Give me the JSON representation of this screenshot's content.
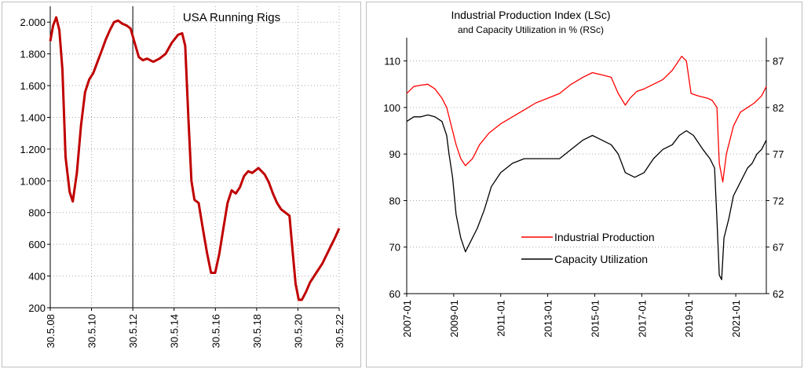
{
  "chart_data": [
    {
      "type": "line",
      "title": "USA Running Rigs",
      "x_ticks": [
        "30.5.08",
        "30.5.10",
        "30.5.12",
        "30.5.14",
        "30.5.16",
        "30.5.18",
        "30.5.20",
        "30.5.22"
      ],
      "y_ticks": [
        "200",
        "400",
        "600",
        "800",
        "1.000",
        "1.200",
        "1.400",
        "1.600",
        "1.800",
        "2.000"
      ],
      "ylim": [
        200,
        2100
      ],
      "xlim": [
        2008.41,
        2022.41
      ],
      "grid": true,
      "series": [
        {
          "color": "#c00000",
          "x": [
            2008.41,
            2008.55,
            2008.7,
            2008.85,
            2009.0,
            2009.15,
            2009.35,
            2009.5,
            2009.7,
            2009.9,
            2010.1,
            2010.3,
            2010.5,
            2010.7,
            2010.9,
            2011.1,
            2011.3,
            2011.5,
            2011.7,
            2011.9,
            2012.1,
            2012.3,
            2012.5,
            2012.7,
            2012.9,
            2013.1,
            2013.4,
            2013.7,
            2014.0,
            2014.3,
            2014.6,
            2014.8,
            2014.95,
            2015.1,
            2015.25,
            2015.4,
            2015.6,
            2015.8,
            2016.0,
            2016.2,
            2016.4,
            2016.6,
            2016.8,
            2017.0,
            2017.2,
            2017.4,
            2017.6,
            2017.8,
            2018.0,
            2018.2,
            2018.5,
            2018.8,
            2019.0,
            2019.2,
            2019.4,
            2019.6,
            2019.8,
            2020.0,
            2020.15,
            2020.3,
            2020.45,
            2020.6,
            2020.8,
            2021.0,
            2021.3,
            2021.6,
            2021.9,
            2022.2,
            2022.41
          ],
          "y": [
            1880,
            1980,
            2030,
            1950,
            1700,
            1150,
            930,
            870,
            1050,
            1350,
            1560,
            1640,
            1680,
            1750,
            1820,
            1890,
            1950,
            2000,
            2010,
            1990,
            1980,
            1960,
            1870,
            1780,
            1760,
            1770,
            1750,
            1770,
            1800,
            1870,
            1920,
            1930,
            1850,
            1400,
            1000,
            880,
            860,
            700,
            550,
            420,
            420,
            540,
            700,
            860,
            940,
            920,
            960,
            1030,
            1060,
            1050,
            1080,
            1040,
            990,
            920,
            860,
            820,
            800,
            780,
            560,
            350,
            250,
            250,
            300,
            360,
            420,
            480,
            560,
            640,
            700
          ]
        }
      ]
    },
    {
      "type": "line",
      "title": "Industrial Production Index  (LSc)",
      "subtitle": "and  Capacity Utilization  in % (RSc)",
      "x_ticks": [
        "2007-01",
        "2009-01",
        "2011-01",
        "2013-01",
        "2015-01",
        "2017-01",
        "2019-01",
        "2021-01"
      ],
      "y_left_ticks": [
        "60",
        "70",
        "80",
        "90",
        "100",
        "110"
      ],
      "y_right_ticks": [
        "62",
        "67",
        "72",
        "77",
        "82",
        "87"
      ],
      "ylim_left": [
        60,
        115
      ],
      "ylim_right": [
        62,
        89.5
      ],
      "xlim": [
        2007.0,
        2022.3
      ],
      "legend": "center",
      "grid": true,
      "series": [
        {
          "name": "Industrial Production",
          "axis": "left",
          "color": "#ff0000",
          "x": [
            2007.0,
            2007.3,
            2007.6,
            2007.9,
            2008.2,
            2008.5,
            2008.7,
            2008.9,
            2009.1,
            2009.3,
            2009.5,
            2009.8,
            2010.1,
            2010.5,
            2011.0,
            2011.5,
            2012.0,
            2012.5,
            2013.0,
            2013.5,
            2014.0,
            2014.5,
            2014.9,
            2015.3,
            2015.7,
            2016.0,
            2016.3,
            2016.5,
            2016.8,
            2017.1,
            2017.5,
            2017.9,
            2018.3,
            2018.7,
            2018.9,
            2019.1,
            2019.4,
            2019.8,
            2020.0,
            2020.2,
            2020.3,
            2020.45,
            2020.6,
            2020.9,
            2021.2,
            2021.5,
            2021.8,
            2022.1,
            2022.3
          ],
          "y": [
            103,
            104.5,
            104.8,
            105,
            104,
            102,
            100,
            96,
            92,
            89,
            87.5,
            89,
            92,
            94.5,
            96.5,
            98,
            99.5,
            101,
            102,
            103,
            105,
            106.5,
            107.5,
            107,
            106.5,
            103,
            100.5,
            102,
            103.5,
            104,
            105,
            106,
            108,
            111,
            110,
            103,
            102.5,
            102,
            101.5,
            100,
            88,
            84,
            90,
            96,
            99,
            100,
            101,
            102.5,
            104.5
          ]
        },
        {
          "name": "Capacity Utilization",
          "axis": "right",
          "color": "#000000",
          "x": [
            2007.0,
            2007.3,
            2007.6,
            2007.9,
            2008.2,
            2008.5,
            2008.7,
            2008.8,
            2008.95,
            2009.1,
            2009.3,
            2009.5,
            2009.7,
            2010.0,
            2010.3,
            2010.6,
            2011.0,
            2011.5,
            2012.0,
            2012.5,
            2013.0,
            2013.5,
            2014.0,
            2014.5,
            2014.9,
            2015.3,
            2015.7,
            2016.0,
            2016.3,
            2016.7,
            2017.1,
            2017.5,
            2017.9,
            2018.3,
            2018.6,
            2018.9,
            2019.2,
            2019.6,
            2019.9,
            2020.1,
            2020.2,
            2020.3,
            2020.4,
            2020.5,
            2020.7,
            2020.9,
            2021.1,
            2021.3,
            2021.5,
            2021.7,
            2021.9,
            2022.1,
            2022.3
          ],
          "y": [
            80.5,
            81,
            81,
            81.2,
            81,
            80.5,
            79,
            77,
            74.5,
            70.5,
            68,
            66.5,
            67.5,
            69,
            71,
            73.5,
            75,
            76,
            76.5,
            76.5,
            76.5,
            76.5,
            77.5,
            78.5,
            79,
            78.5,
            78,
            77,
            75,
            74.5,
            75,
            76.5,
            77.5,
            78,
            79,
            79.5,
            79,
            77.5,
            76.5,
            75.5,
            70,
            64,
            63.5,
            68,
            70,
            72.5,
            73.5,
            74.5,
            75.5,
            76,
            77,
            77.5,
            78.5
          ]
        }
      ]
    }
  ]
}
